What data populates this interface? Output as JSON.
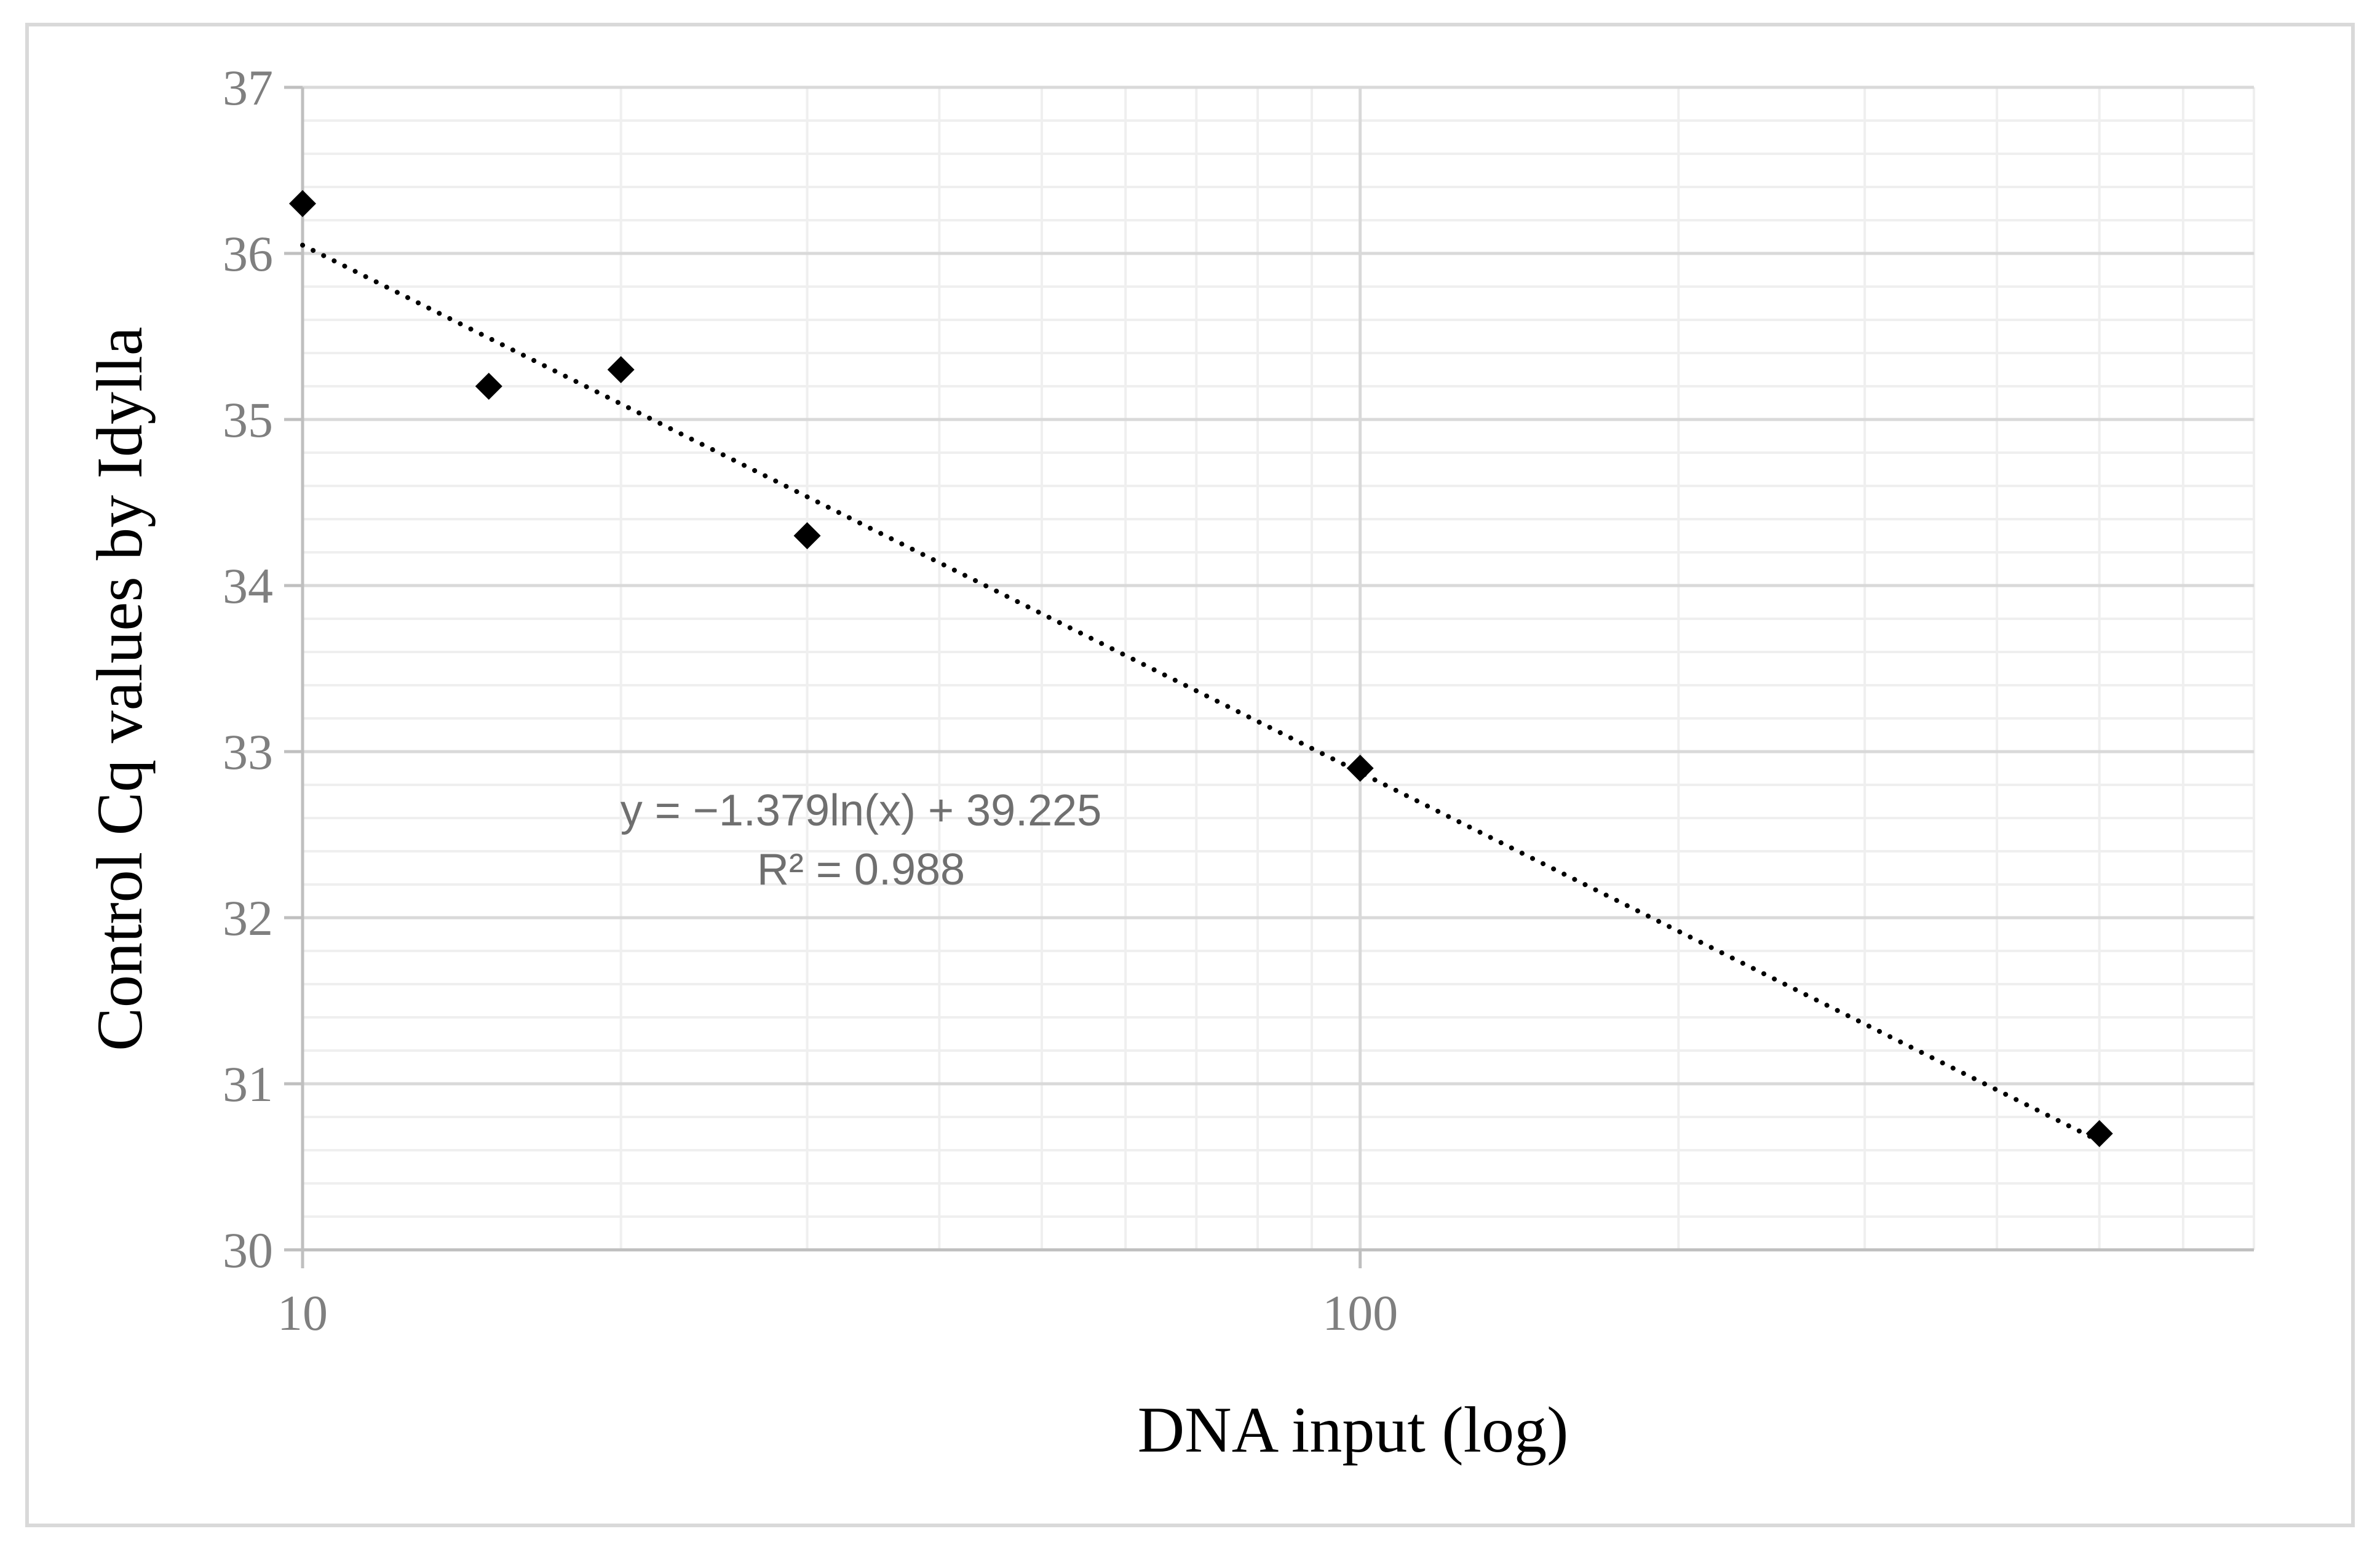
{
  "chart_data": {
    "type": "scatter",
    "title": "",
    "xlabel": "DNA input (log)",
    "ylabel": "Control Cq values by Idylla",
    "x_scale": "log",
    "xlim": [
      10,
      700
    ],
    "ylim": [
      30,
      37
    ],
    "x_ticks": [
      "10",
      "100"
    ],
    "y_ticks": [
      "30",
      "31",
      "32",
      "33",
      "34",
      "35",
      "36",
      "37"
    ],
    "grid": true,
    "legend": "none",
    "series": [
      {
        "marker": "diamond",
        "color": "#000000",
        "points": [
          {
            "x": 10,
            "y": 36.3
          },
          {
            "x": 15,
            "y": 35.2
          },
          {
            "x": 20,
            "y": 35.3
          },
          {
            "x": 30,
            "y": 34.3
          },
          {
            "x": 100,
            "y": 32.9
          },
          {
            "x": 500,
            "y": 30.7
          }
        ]
      }
    ],
    "trendline": {
      "type": "logarithmic",
      "slope": -1.379,
      "intercept": 39.225,
      "style": "dotted",
      "equation_label": "y = −1.379ln(x) + 39.225",
      "r2_label": "R² = 0.988"
    },
    "colors": {
      "major_grid": "#d9d9d9",
      "minor_grid": "#efefef",
      "tick_text": "#7f7f7f",
      "axis_title": "#000000",
      "trend_text": "#6f6f6f",
      "frame": "#d9d9d9"
    }
  }
}
